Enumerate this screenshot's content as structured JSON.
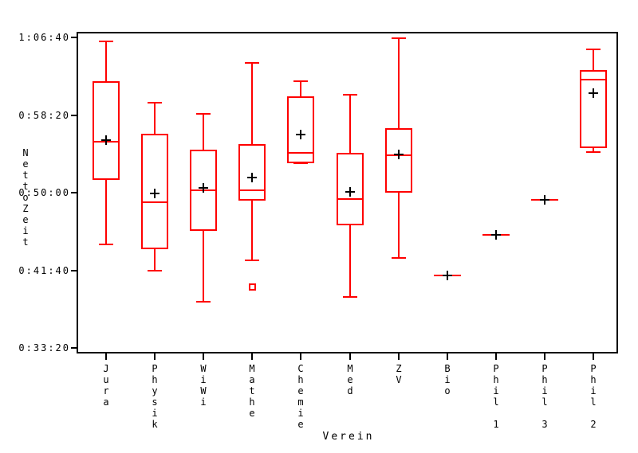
{
  "chart_data": {
    "type": "boxplot",
    "title": "",
    "xlabel": "Verein",
    "ylabel": "NettoZeit",
    "legend": null,
    "grid": false,
    "y_axis": {
      "range_seconds": [
        2000,
        4000
      ],
      "ticks": [
        {
          "value": 4000,
          "label": "1:06:40"
        },
        {
          "value": 3500,
          "label": "0:58:20"
        },
        {
          "value": 3000,
          "label": "0:50:00"
        },
        {
          "value": 2500,
          "label": "0:41:40"
        },
        {
          "value": 2000,
          "label": "0:33:20"
        }
      ]
    },
    "categories": [
      "Jura",
      "Physik",
      "WiWi",
      "Mathe",
      "Chemie",
      "Med",
      "ZV",
      "Bio",
      "Phil 1",
      "Phil 3",
      "Phil 2"
    ],
    "series": [
      {
        "category": "Jura",
        "low": 2665,
        "q1": 3080,
        "median": 3330,
        "q3": 3720,
        "high": 3975,
        "mean": 3340,
        "outliers": []
      },
      {
        "category": "Physik",
        "low": 2495,
        "q1": 2635,
        "median": 2940,
        "q3": 3380,
        "high": 3580,
        "mean": 2995,
        "outliers": []
      },
      {
        "category": "WiWi",
        "low": 2295,
        "q1": 2755,
        "median": 3015,
        "q3": 3275,
        "high": 3510,
        "mean": 3030,
        "outliers": []
      },
      {
        "category": "Mathe",
        "low": 2565,
        "q1": 2950,
        "median": 3015,
        "q3": 3315,
        "high": 3835,
        "mean": 3095,
        "outliers": [
          2395
        ]
      },
      {
        "category": "Chemie",
        "low": 3190,
        "q1": 3190,
        "median": 3255,
        "q3": 3620,
        "high": 3720,
        "mean": 3375,
        "outliers": []
      },
      {
        "category": "Med",
        "low": 2330,
        "q1": 2790,
        "median": 2960,
        "q3": 3255,
        "high": 3630,
        "mean": 3005,
        "outliers": []
      },
      {
        "category": "ZV",
        "low": 2580,
        "q1": 3000,
        "median": 3240,
        "q3": 3415,
        "high": 3995,
        "mean": 3245,
        "outliers": []
      },
      {
        "category": "Bio",
        "low": 2465,
        "q1": 2465,
        "median": 2465,
        "q3": 2465,
        "high": 2465,
        "mean": 2465,
        "outliers": []
      },
      {
        "category": "Phil 1",
        "low": 2730,
        "q1": 2730,
        "median": 2730,
        "q3": 2730,
        "high": 2730,
        "mean": 2730,
        "outliers": []
      },
      {
        "category": "Phil 3",
        "low": 2955,
        "q1": 2955,
        "median": 2955,
        "q3": 2955,
        "high": 2955,
        "mean": 2955,
        "outliers": []
      },
      {
        "category": "Phil 2",
        "low": 3260,
        "q1": 3285,
        "median": 3730,
        "q3": 3790,
        "high": 3925,
        "mean": 3640,
        "outliers": []
      }
    ],
    "markers": {
      "mean": "plus",
      "outlier": "open-square"
    },
    "colors": {
      "box": "#ff0000",
      "mean_marker": "#000000",
      "axis": "#000000",
      "background": "#ffffff"
    }
  }
}
